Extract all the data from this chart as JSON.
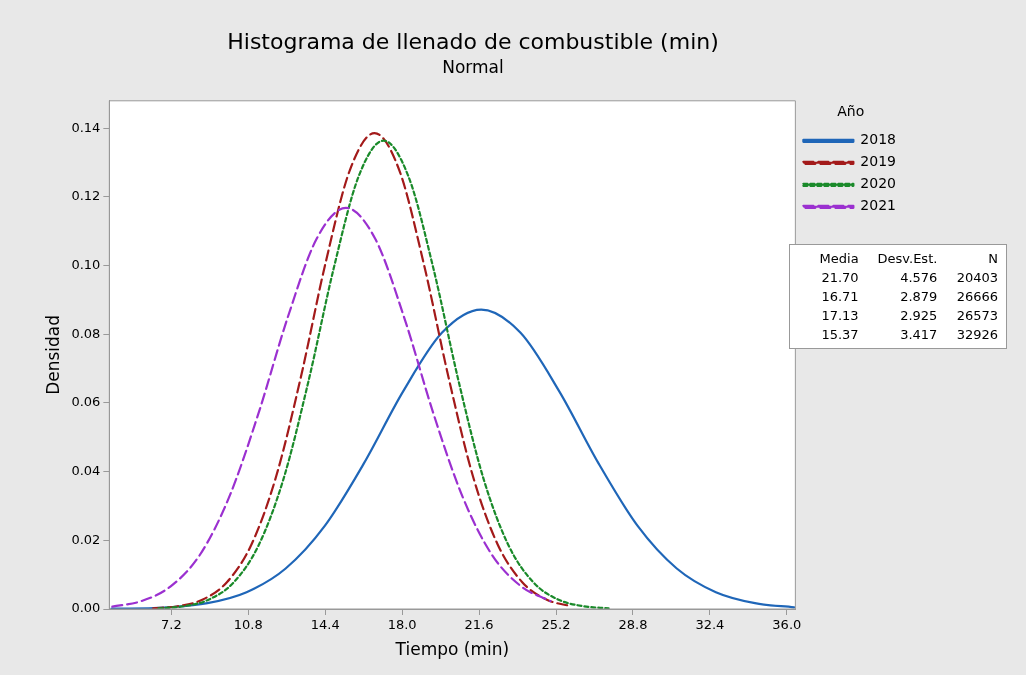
{
  "chart_data": {
    "type": "line",
    "title": "Histograma de llenado de combustible (min)",
    "subtitle": "Normal",
    "xlabel": "Tiempo (min)",
    "ylabel": "Densidad",
    "legend_title": "Año",
    "legend": "right",
    "grid": false,
    "marker": "none",
    "xlim": [
      4.3,
      36.4
    ],
    "ylim": [
      0,
      0.148
    ],
    "xticks": [
      {
        "value": 7.2,
        "label": "7.2"
      },
      {
        "value": 10.8,
        "label": "10.8"
      },
      {
        "value": 14.4,
        "label": "14.4"
      },
      {
        "value": 18,
        "label": "18.0"
      },
      {
        "value": 21.6,
        "label": "21.6"
      },
      {
        "value": 25.2,
        "label": "25.2"
      },
      {
        "value": 28.8,
        "label": "28.8"
      },
      {
        "value": 32.4,
        "label": "32.4"
      },
      {
        "value": 36,
        "label": "36.0"
      }
    ],
    "yticks": [
      {
        "value": 0,
        "label": "0.00"
      },
      {
        "value": 0.02,
        "label": "0.02"
      },
      {
        "value": 0.04,
        "label": "0.04"
      },
      {
        "value": 0.06,
        "label": "0.06"
      },
      {
        "value": 0.08,
        "label": "0.08"
      },
      {
        "value": 0.1,
        "label": "0.10"
      },
      {
        "value": 0.12,
        "label": "0.12"
      },
      {
        "value": 0.14,
        "label": "0.14"
      }
    ],
    "series": [
      {
        "name": "2018",
        "color": "#1f66b8",
        "line_style": "solid",
        "x": [
          4.4,
          5.23,
          7.06,
          8.89,
          10.72,
          12.55,
          14.38,
          16.21,
          18.04,
          19.87,
          21.7,
          23.53,
          25.36,
          27.19,
          29.02,
          30.85,
          32.68,
          34.51,
          36.34
        ],
        "values": [
          0.0001,
          0.0001,
          0.0005,
          0.0017,
          0.0049,
          0.0118,
          0.0242,
          0.0424,
          0.0633,
          0.0805,
          0.0872,
          0.0805,
          0.0633,
          0.0424,
          0.0242,
          0.0118,
          0.0049,
          0.0017,
          0.0005
        ]
      },
      {
        "name": "2019",
        "color": "#a31a1a",
        "line_style": "dashed",
        "x": [
          6.35,
          7.5,
          8.65,
          9.8,
          10.95,
          12.1,
          13.26,
          14.41,
          15.56,
          16.71,
          17.86,
          19.01,
          20.17,
          21.32,
          22.47,
          23.62,
          24.77,
          25.92
        ],
        "values": [
          0.0002,
          0.0008,
          0.0027,
          0.0078,
          0.0188,
          0.0385,
          0.0675,
          0.1006,
          0.1279,
          0.1386,
          0.1279,
          0.1006,
          0.0675,
          0.0385,
          0.0188,
          0.0078,
          0.0027,
          0.0008
        ]
      },
      {
        "name": "2020",
        "color": "#1a8a2a",
        "line_style": "dotted",
        "x": [
          6.6,
          7.77,
          8.94,
          10.11,
          11.28,
          12.45,
          13.62,
          14.79,
          15.96,
          17.13,
          18.3,
          19.47,
          20.64,
          21.81,
          22.98,
          24.15,
          25.32,
          26.49,
          27.66
        ],
        "values": [
          0.0002,
          0.0008,
          0.0027,
          0.0077,
          0.0185,
          0.0379,
          0.0664,
          0.099,
          0.1259,
          0.1364,
          0.1259,
          0.099,
          0.0664,
          0.0379,
          0.0185,
          0.0077,
          0.0027,
          0.0008,
          0.0002
        ]
      },
      {
        "name": "2021",
        "color": "#9b30d0",
        "line_style": "dashed",
        "x": [
          4.44,
          5.8,
          7.17,
          8.54,
          9.9,
          11.27,
          12.64,
          14.0,
          15.37,
          16.74,
          18.1,
          19.47,
          20.84,
          22.2,
          23.57,
          24.94
        ],
        "values": [
          0.0007,
          0.0023,
          0.0066,
          0.0158,
          0.0325,
          0.0568,
          0.0848,
          0.1078,
          0.1168,
          0.1078,
          0.0848,
          0.0568,
          0.0325,
          0.0158,
          0.0066,
          0.0023
        ]
      }
    ],
    "annotations": [
      "Media",
      "Desv.Est.",
      "N",
      "21.70",
      "4.576",
      "20403",
      "16.71",
      "2.879",
      "26666",
      "17.13",
      "2.925",
      "26573",
      "15.37",
      "3.417",
      "32926"
    ]
  }
}
